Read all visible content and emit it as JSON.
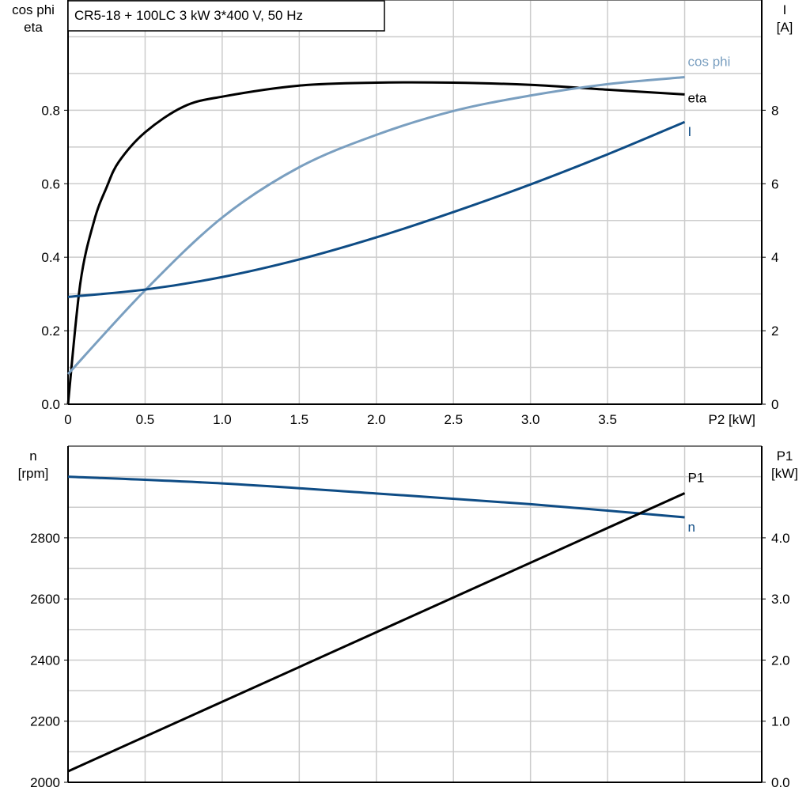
{
  "chart_data": [
    {
      "type": "line",
      "title": "CR5-18 + 100LC   3 kW   3*400 V, 50 Hz",
      "xlabel": "P2 [kW]",
      "ylabel_left": [
        "cos phi",
        "eta"
      ],
      "ylabel_right": [
        "I",
        "[A]"
      ],
      "xlim": [
        0,
        4.5
      ],
      "ylim_left": [
        0,
        1.1
      ],
      "ylim_right": [
        0,
        11
      ],
      "x_ticks": [
        "0",
        "0.5",
        "1.0",
        "1.5",
        "2.0",
        "2.5",
        "3.0",
        "3.5"
      ],
      "y_ticks_left": [
        "0.0",
        "0.2",
        "0.4",
        "0.6",
        "0.8"
      ],
      "y_ticks_right": [
        "0",
        "2",
        "4",
        "6",
        "8"
      ],
      "grid": true,
      "series": [
        {
          "name": "eta",
          "axis": "left",
          "color": "#000000",
          "x": [
            0,
            0.08,
            0.17,
            0.25,
            0.33,
            0.5,
            0.75,
            1.0,
            1.5,
            2.0,
            2.5,
            3.0,
            3.5,
            4.0
          ],
          "y": [
            0,
            0.33,
            0.5,
            0.59,
            0.66,
            0.74,
            0.81,
            0.837,
            0.867,
            0.875,
            0.875,
            0.869,
            0.856,
            0.843
          ]
        },
        {
          "name": "cos phi",
          "axis": "left",
          "color": "#7a9fc0",
          "x": [
            0,
            0.5,
            1.0,
            1.5,
            2.0,
            2.5,
            3.0,
            3.5,
            4.0
          ],
          "y": [
            0.082,
            0.31,
            0.508,
            0.645,
            0.733,
            0.798,
            0.84,
            0.871,
            0.89
          ]
        },
        {
          "name": "I",
          "axis": "right",
          "color": "#0e4c85",
          "x": [
            0,
            0.5,
            1.0,
            1.5,
            2.0,
            2.5,
            3.0,
            3.5,
            4.0
          ],
          "y": [
            2.92,
            3.12,
            3.46,
            3.94,
            4.54,
            5.23,
            5.98,
            6.8,
            7.68
          ]
        }
      ]
    },
    {
      "type": "line",
      "ylabel_left": [
        "n",
        "[rpm]"
      ],
      "ylabel_right": [
        "P1",
        "[kW]"
      ],
      "xlim": [
        0,
        4.5
      ],
      "ylim_left": [
        2000,
        3100
      ],
      "ylim_right": [
        0,
        5.5
      ],
      "y_ticks_left": [
        "2000",
        "2200",
        "2400",
        "2600",
        "2800"
      ],
      "y_ticks_right": [
        "0.0",
        "1.0",
        "2.0",
        "3.0",
        "4.0"
      ],
      "grid": true,
      "series": [
        {
          "name": "n",
          "axis": "left",
          "color": "#0e4c85",
          "x": [
            0,
            1.0,
            2.0,
            3.0,
            4.0
          ],
          "y": [
            3000,
            2978,
            2945,
            2910,
            2867
          ]
        },
        {
          "name": "P1",
          "axis": "right",
          "color": "#000000",
          "x": [
            0,
            4.0
          ],
          "y": [
            0.18,
            4.73
          ]
        }
      ]
    }
  ]
}
